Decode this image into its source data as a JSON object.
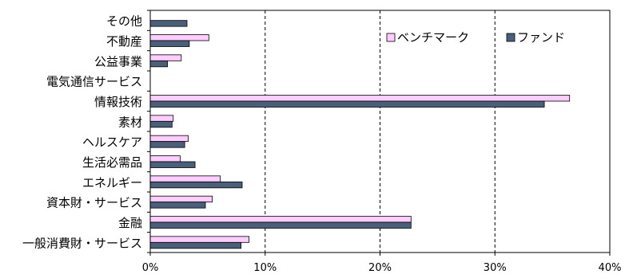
{
  "chart_data": {
    "type": "bar",
    "orientation": "horizontal",
    "categories": [
      "その他",
      "不動産",
      "公益事業",
      "電気通信サービス",
      "情報技術",
      "素材",
      "ヘルスケア",
      "生活必需品",
      "エネルギー",
      "資本財・サービス",
      "金融",
      "一般消費財・サービス"
    ],
    "series": [
      {
        "name": "ベンチマーク",
        "values": [
          0,
          5.1,
          2.7,
          0,
          36.5,
          2.0,
          3.3,
          2.6,
          6.1,
          5.4,
          22.7,
          8.6
        ]
      },
      {
        "name": "ファンド",
        "values": [
          3.2,
          3.4,
          1.5,
          0,
          34.3,
          1.9,
          3.0,
          3.9,
          8.0,
          4.8,
          22.7,
          7.9
        ]
      }
    ],
    "x_ticks": [
      "0%",
      "10%",
      "20%",
      "30%",
      "40%"
    ],
    "xlim": [
      0,
      40
    ],
    "grid": "vertical dashed at 10%, 20%, 30%",
    "legend_position": "top-right",
    "title": "",
    "xlabel": "",
    "ylabel": ""
  },
  "colors": {
    "benchmark": "#ffccff",
    "fund": "#4a5f7a",
    "axis": "#000000"
  }
}
